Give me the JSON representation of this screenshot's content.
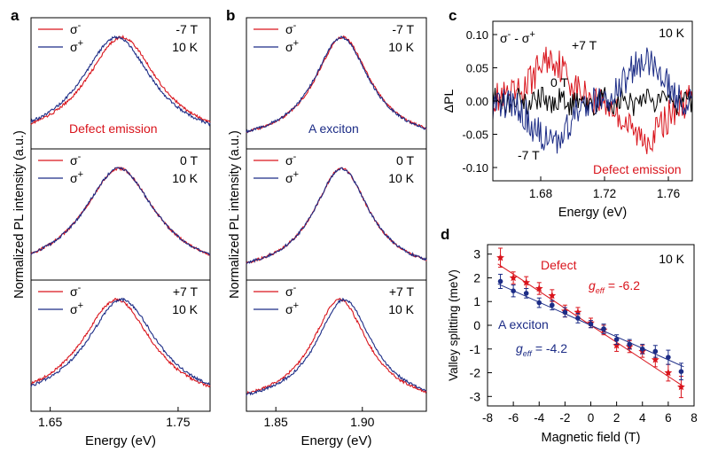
{
  "colors": {
    "red": "#d9141c",
    "blue": "#1c2c86",
    "black": "#000000"
  },
  "chart_data": [
    {
      "id": "a",
      "panel_label": "a",
      "type": "line",
      "xlabel": "Energy (eV)",
      "ylabel": "Normalized PL intensity (a.u.)",
      "xlim": [
        1.635,
        1.775
      ],
      "xticks": [
        "1.65",
        "1.75"
      ],
      "legend_sigma_minus": "σ",
      "legend_sigma_minus_sup": "-",
      "legend_sigma_plus": "σ",
      "legend_sigma_plus_sup": "+",
      "annotation": "Defect emission",
      "subpanels": [
        {
          "field": "-7 T",
          "temp": "10 K",
          "series": [
            {
              "name": "σ-",
              "peak": 1.706,
              "width": 0.04
            },
            {
              "name": "σ+",
              "peak": 1.702,
              "width": 0.04
            }
          ]
        },
        {
          "field": "0 T",
          "temp": "10 K",
          "series": [
            {
              "name": "σ-",
              "peak": 1.704,
              "width": 0.04
            },
            {
              "name": "σ+",
              "peak": 1.704,
              "width": 0.04
            }
          ]
        },
        {
          "field": "+7 T",
          "temp": "10 K",
          "series": [
            {
              "name": "σ-",
              "peak": 1.702,
              "width": 0.04
            },
            {
              "name": "σ+",
              "peak": 1.706,
              "width": 0.04
            }
          ]
        }
      ]
    },
    {
      "id": "b",
      "panel_label": "b",
      "type": "line",
      "xlabel": "Energy (eV)",
      "ylabel": "Normalized PL intensity (a.u.)",
      "xlim": [
        1.833,
        1.937
      ],
      "xticks": [
        "1.85",
        "1.90"
      ],
      "legend_sigma_minus": "σ",
      "legend_sigma_minus_sup": "-",
      "legend_sigma_plus": "σ",
      "legend_sigma_plus_sup": "+",
      "annotation": "A exciton",
      "subpanels": [
        {
          "field": "-7 T",
          "temp": "10 K",
          "series": [
            {
              "name": "σ-",
              "peak": 1.8885,
              "width": 0.023
            },
            {
              "name": "σ+",
              "peak": 1.888,
              "width": 0.023
            }
          ]
        },
        {
          "field": "0 T",
          "temp": "10 K",
          "series": [
            {
              "name": "σ-",
              "peak": 1.888,
              "width": 0.023
            },
            {
              "name": "σ+",
              "peak": 1.888,
              "width": 0.023
            }
          ]
        },
        {
          "field": "+7 T",
          "temp": "10 K",
          "series": [
            {
              "name": "σ-",
              "peak": 1.887,
              "width": 0.023
            },
            {
              "name": "σ+",
              "peak": 1.8895,
              "width": 0.023
            }
          ]
        }
      ]
    },
    {
      "id": "c",
      "panel_label": "c",
      "type": "line",
      "xlabel": "Energy (eV)",
      "ylabel": "ΔPL",
      "xlim": [
        1.65,
        1.775
      ],
      "ylim": [
        -0.12,
        0.12
      ],
      "xticks": [
        1.68,
        1.72,
        1.76
      ],
      "xtick_labels": [
        "1.68",
        "1.72",
        "1.76"
      ],
      "yticks": [
        0.1,
        0.05,
        0.0,
        -0.05,
        -0.1
      ],
      "ytick_labels": [
        "0.10",
        "0.05",
        "0.00",
        "-0.05",
        "-0.10"
      ],
      "legend_sigma_minus": "σ",
      "legend_sigma_minus_sup": "-",
      "legend_sigma_plus": "σ",
      "legend_sigma_plus_sup": "+",
      "legend_join": " - ",
      "temp": "10 K",
      "annotation": "Defect emission",
      "series": [
        {
          "name": "+7 T",
          "color": "red",
          "sign": 1
        },
        {
          "name": "0 T",
          "color": "black",
          "sign": 0
        },
        {
          "name": "-7 T",
          "color": "blue",
          "sign": -1
        }
      ]
    },
    {
      "id": "d",
      "panel_label": "d",
      "type": "scatter",
      "xlabel": "Magnetic field (T)",
      "ylabel": "Valley splitting (meV)",
      "xlim": [
        -8,
        8
      ],
      "ylim": [
        -3.4,
        3.4
      ],
      "xticks": [
        -8,
        -6,
        -4,
        -2,
        0,
        2,
        4,
        6,
        8
      ],
      "xtick_labels": [
        "-8",
        "-6",
        "-4",
        "-2",
        "0",
        "2",
        "4",
        "6",
        "8"
      ],
      "yticks": [
        3,
        2,
        1,
        0,
        -1,
        -2,
        -3
      ],
      "ytick_labels": [
        "3",
        "2",
        "1",
        "0",
        "-1",
        "-2",
        "-3"
      ],
      "temp": "10 K",
      "series": [
        {
          "name": "Defect",
          "g_symbol": "g",
          "g_sub": "eff",
          "g_value": "= -6.2",
          "marker": "star",
          "color": "red",
          "fit_slope": -0.359,
          "x": [
            -7,
            -6,
            -5,
            -4,
            -3,
            -2,
            -1,
            0,
            1,
            2,
            3,
            4,
            5,
            6,
            7
          ],
          "y": [
            2.85,
            2.0,
            1.8,
            1.55,
            1.25,
            0.6,
            0.55,
            0.1,
            -0.2,
            -0.85,
            -0.9,
            -1.1,
            -1.45,
            -2.0,
            -2.6
          ],
          "err": [
            0.4,
            0.25,
            0.25,
            0.25,
            0.25,
            0.25,
            0.2,
            0.2,
            0.2,
            0.25,
            0.25,
            0.25,
            0.3,
            0.35,
            0.45
          ]
        },
        {
          "name": "A exciton",
          "g_symbol": "g",
          "g_sub": "eff",
          "g_value": "= -4.2",
          "marker": "circle",
          "color": "blue",
          "fit_slope": -0.243,
          "x": [
            -7,
            -6,
            -5,
            -4,
            -3,
            -2,
            -1,
            0,
            1,
            2,
            3,
            4,
            5,
            6,
            7
          ],
          "y": [
            1.85,
            1.45,
            1.35,
            0.95,
            0.85,
            0.55,
            0.3,
            0.05,
            -0.15,
            -0.6,
            -0.8,
            -1.0,
            -1.1,
            -1.35,
            -1.95
          ],
          "err": [
            0.3,
            0.25,
            0.2,
            0.2,
            0.2,
            0.2,
            0.2,
            0.15,
            0.2,
            0.2,
            0.2,
            0.2,
            0.25,
            0.3,
            0.35
          ]
        }
      ]
    }
  ]
}
